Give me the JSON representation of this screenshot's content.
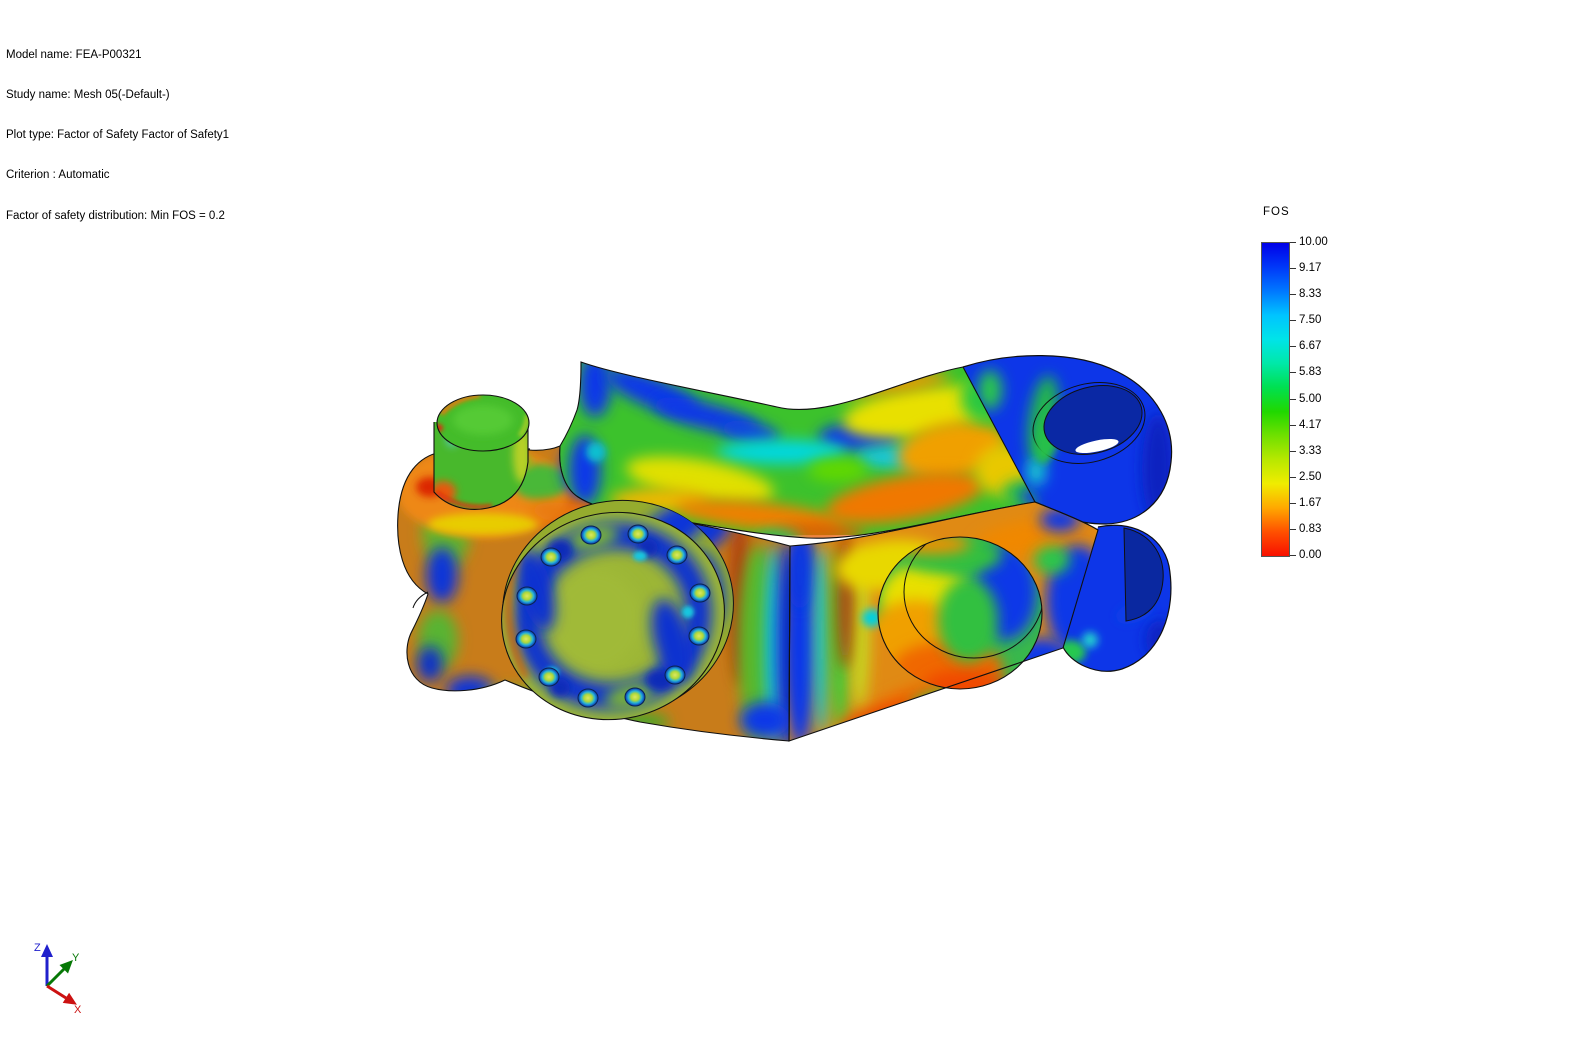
{
  "header": {
    "lines": [
      "Model name: FEA-P00321",
      "Study name: Mesh 05(-Default-)",
      "Plot type: Factor of Safety Factor of Safety1",
      "Criterion : Automatic",
      "Factor of safety distribution: Min FOS = 0.2"
    ]
  },
  "legend": {
    "title": "FOS",
    "ticks": [
      "10.00",
      "9.17",
      "8.33",
      "7.50",
      "6.67",
      "5.83",
      "5.00",
      "4.17",
      "3.33",
      "2.50",
      "1.67",
      "0.83",
      "0.00"
    ],
    "gradient": [
      "#0000E8",
      "#0038F8",
      "#0078FF",
      "#00C4FF",
      "#00E4E8",
      "#00E8A8",
      "#00E050",
      "#20D800",
      "#70E000",
      "#B8E800",
      "#F0EC00",
      "#FFA800",
      "#FF5000",
      "#F81000"
    ]
  },
  "triad": {
    "x_label": "X",
    "y_label": "Y",
    "z_label": "Z",
    "x_color": "#cc1111",
    "y_color": "#067806",
    "z_color": "#2020cc"
  }
}
